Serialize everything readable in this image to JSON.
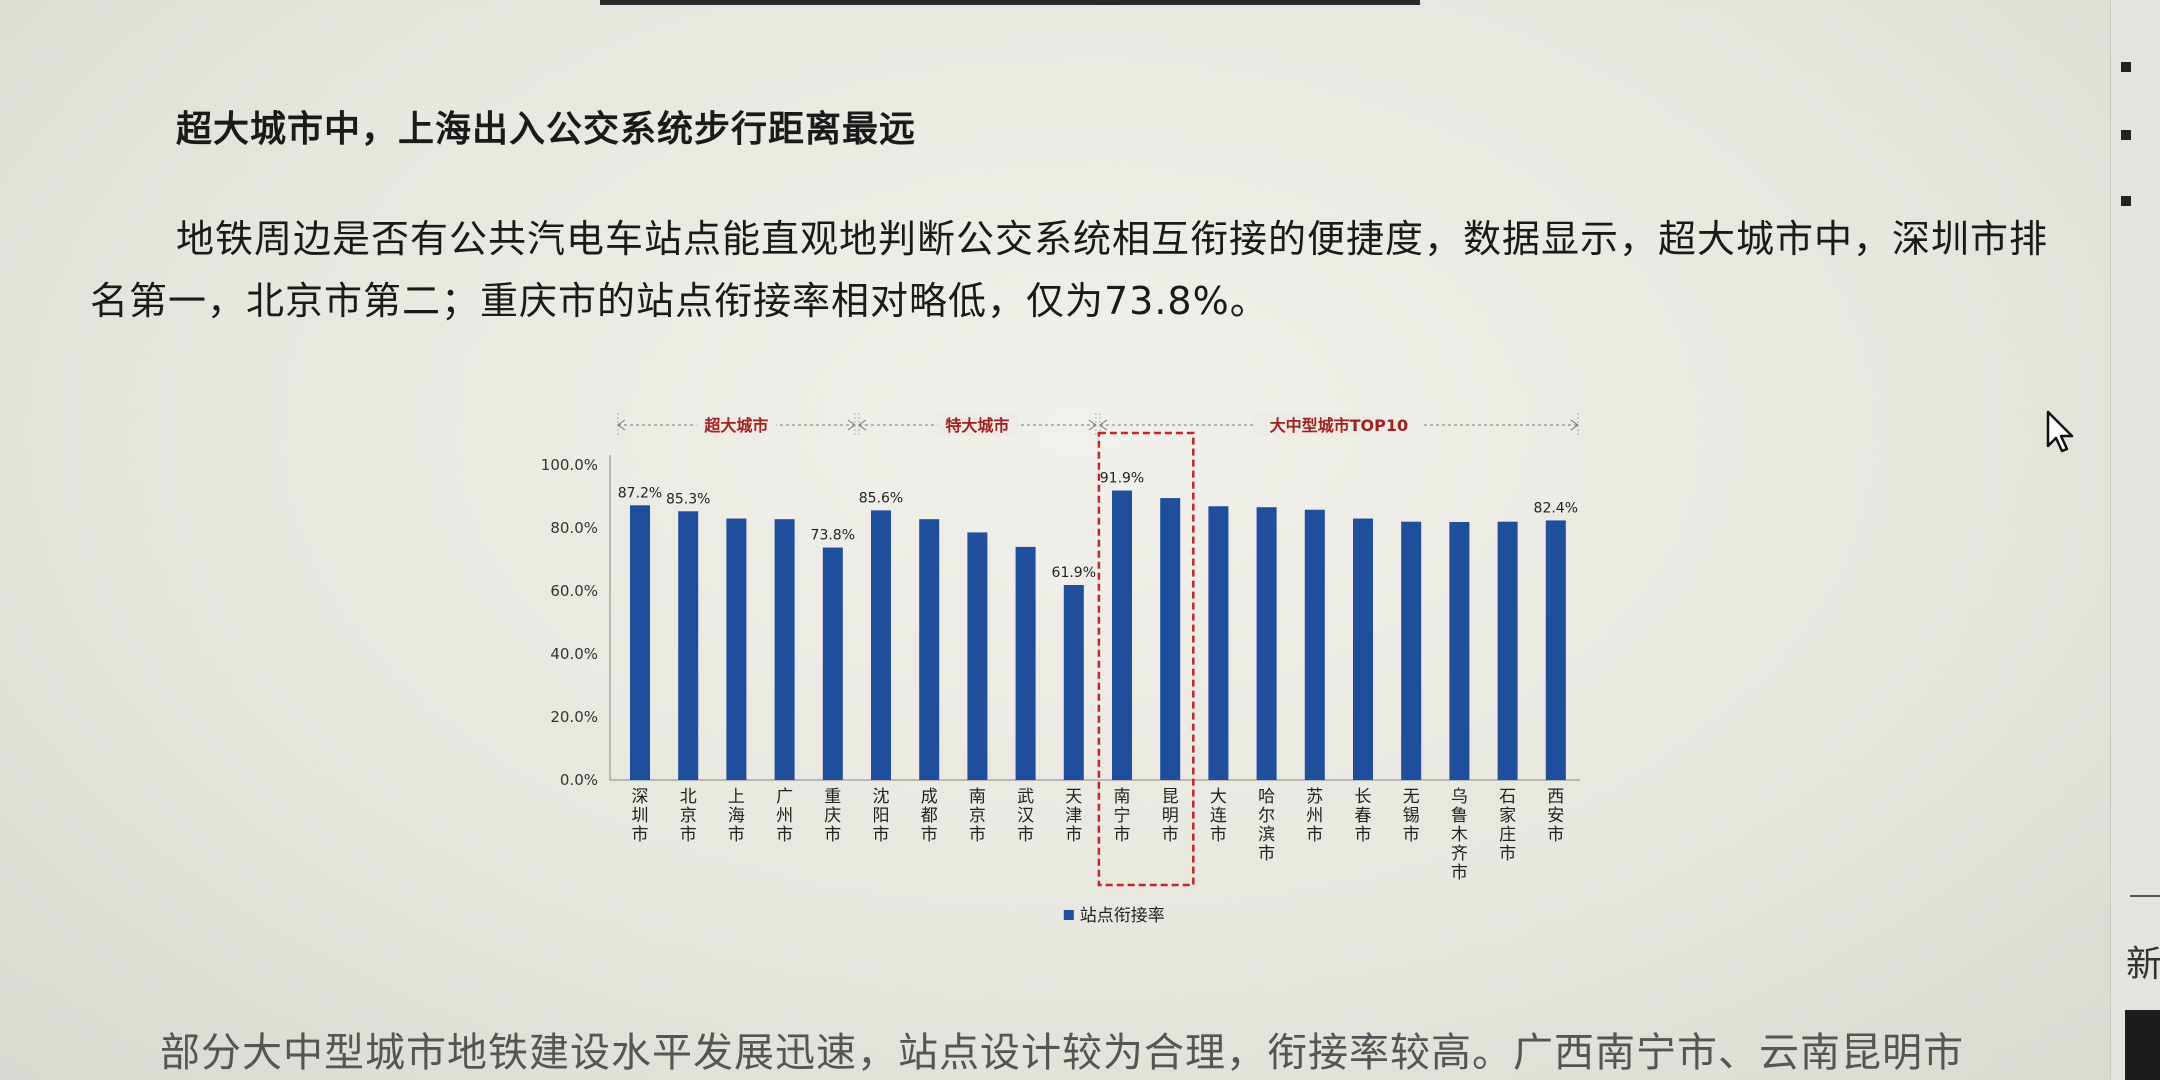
{
  "text": {
    "heading": "超大城市中，上海出入公交系统步行距离最远",
    "paragraph": "地铁周边是否有公共汽电车站点能直观地判断公交系统相互衔接的便捷度，数据显示，超大城市中，深圳市排名第一，北京市第二；重庆市的站点衔接率相对略低，仅为73.8%。",
    "bottom": "部分大中型城市地铁建设水平发展迅速，站点设计较为合理，衔接率较高。广西南宁市、云南昆明市"
  },
  "side_panel": {
    "new_label": "新"
  },
  "colors": {
    "bar": "#1f4e9c",
    "group_label": "#a12020",
    "highlight_box": "#c0262a"
  },
  "chart_data": {
    "type": "bar",
    "categories": [
      "深圳市",
      "北京市",
      "上海市",
      "广州市",
      "重庆市",
      "沈阳市",
      "成都市",
      "南京市",
      "武汉市",
      "天津市",
      "南宁市",
      "昆明市",
      "大连市",
      "哈尔滨市",
      "苏州市",
      "长春市",
      "无锡市",
      "乌鲁木齐市",
      "石家庄市",
      "西安市"
    ],
    "series": [
      {
        "name": "站点衔接率",
        "values": [
          87.2,
          85.3,
          83.0,
          82.8,
          73.8,
          85.6,
          82.8,
          78.6,
          74.0,
          61.9,
          91.9,
          89.5,
          86.9,
          86.6,
          85.8,
          83.0,
          82.0,
          81.9,
          82.0,
          82.4
        ]
      }
    ],
    "data_labels": [
      {
        "index": 0,
        "text": "87.2%"
      },
      {
        "index": 1,
        "text": "85.3%"
      },
      {
        "index": 4,
        "text": "73.8%"
      },
      {
        "index": 5,
        "text": "85.6%"
      },
      {
        "index": 9,
        "text": "61.9%"
      },
      {
        "index": 10,
        "text": "91.9%"
      },
      {
        "index": 19,
        "text": "82.4%"
      }
    ],
    "y_ticks": [
      "0.0%",
      "20.0%",
      "40.0%",
      "60.0%",
      "80.0%",
      "100.0%"
    ],
    "ylim": [
      0,
      100
    ],
    "groups": [
      {
        "label": "超大城市",
        "start": 0,
        "end": 4
      },
      {
        "label": "特大城市",
        "start": 5,
        "end": 9
      },
      {
        "label": "大中型城市TOP10",
        "start": 10,
        "end": 19
      }
    ],
    "highlight": {
      "start": 10,
      "end": 11
    },
    "grid": false,
    "legend": {
      "position": "bottom",
      "label": "站点衔接率"
    }
  }
}
